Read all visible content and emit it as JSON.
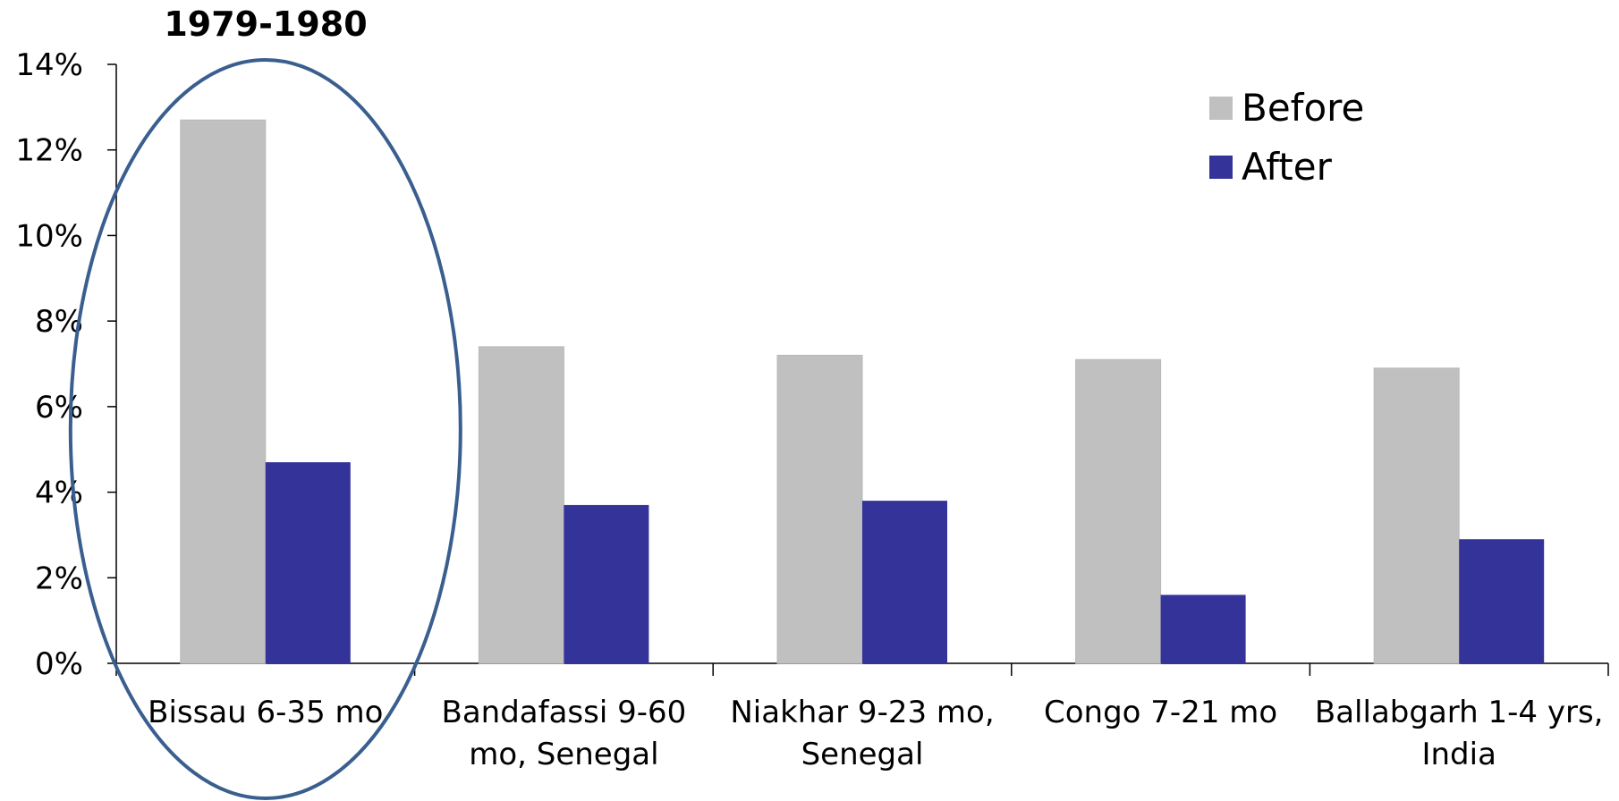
{
  "chart_data": {
    "type": "bar",
    "title": "",
    "xlabel": "",
    "ylabel": "",
    "annotation": "1979-1980",
    "categories": [
      [
        "Bissau 6-35 mo"
      ],
      [
        "Bandafassi 9-60",
        "mo, Senegal"
      ],
      [
        "Niakhar 9-23 mo,",
        "Senegal"
      ],
      [
        "Congo 7-21 mo"
      ],
      [
        "Ballabgarh 1-4 yrs,",
        "India"
      ]
    ],
    "series": [
      {
        "name": "Before",
        "color": "#c0c0c0",
        "values": [
          12.7,
          7.4,
          7.2,
          7.1,
          6.9
        ]
      },
      {
        "name": "After",
        "color": "#333399",
        "values": [
          4.7,
          3.7,
          3.8,
          1.6,
          2.9
        ]
      }
    ],
    "ylim": [
      0,
      14
    ],
    "yticks": [
      "0%",
      "2%",
      "4%",
      "6%",
      "8%",
      "10%",
      "12%",
      "14%"
    ],
    "ytick_values": [
      0,
      2,
      4,
      6,
      8,
      10,
      12,
      14
    ],
    "grid": false,
    "legend_position": "top-right",
    "highlight": {
      "category_index": 0,
      "shape": "ellipse",
      "color": "#3a5f8f"
    }
  }
}
